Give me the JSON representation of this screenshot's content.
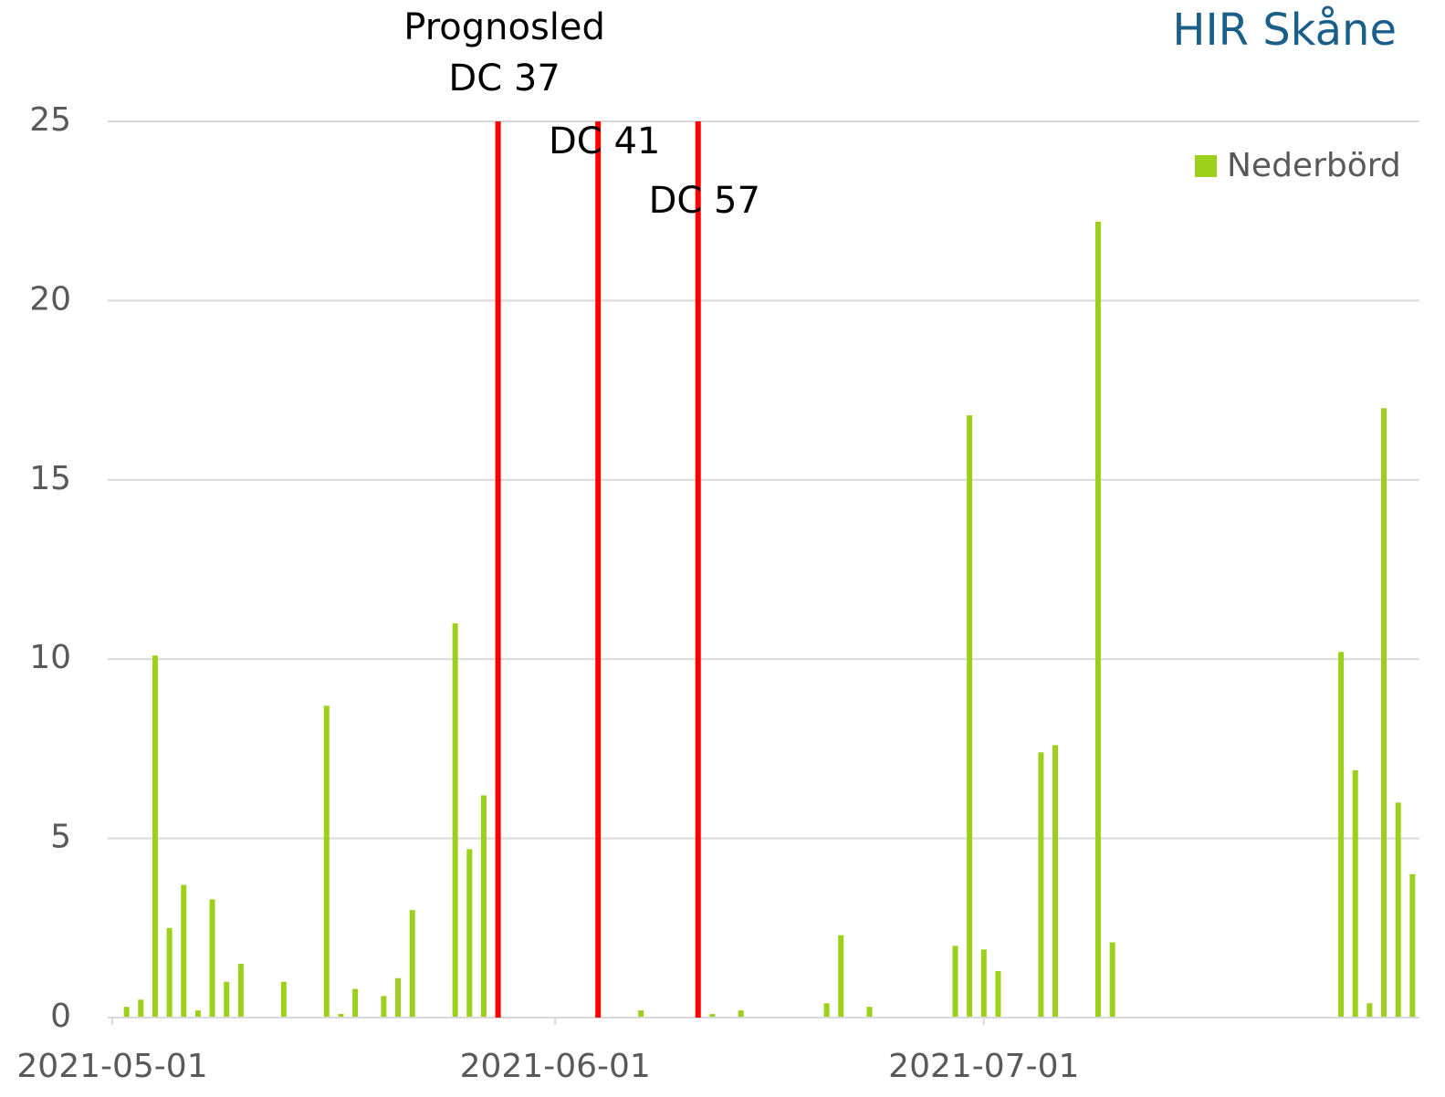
{
  "chart_data": {
    "type": "bar",
    "brand": "HIR Skåne",
    "series": [
      {
        "name": "Nederbörd",
        "color": "#9bd01b",
        "x": [
          "2021-05-02",
          "2021-05-03",
          "2021-05-04",
          "2021-05-05",
          "2021-05-06",
          "2021-05-07",
          "2021-05-08",
          "2021-05-09",
          "2021-05-10",
          "2021-05-13",
          "2021-05-16",
          "2021-05-17",
          "2021-05-18",
          "2021-05-20",
          "2021-05-21",
          "2021-05-22",
          "2021-05-25",
          "2021-05-26",
          "2021-05-27",
          "2021-06-07",
          "2021-06-12",
          "2021-06-14",
          "2021-06-20",
          "2021-06-21",
          "2021-06-23",
          "2021-06-29",
          "2021-06-30",
          "2021-07-01",
          "2021-07-02",
          "2021-07-05",
          "2021-07-06",
          "2021-07-09",
          "2021-07-10",
          "2021-07-26",
          "2021-07-27",
          "2021-07-28",
          "2021-07-29",
          "2021-07-30",
          "2021-07-31"
        ],
        "values": [
          0.3,
          0.5,
          10.1,
          2.5,
          3.7,
          0.2,
          3.3,
          1.0,
          1.5,
          1.0,
          8.7,
          0.1,
          0.8,
          0.6,
          1.1,
          3.0,
          11.0,
          4.7,
          6.2,
          0.2,
          0.1,
          0.2,
          0.4,
          2.3,
          0.3,
          2.0,
          16.8,
          1.9,
          1.3,
          7.4,
          7.6,
          22.2,
          2.1,
          10.2,
          6.9,
          0.4,
          17.0,
          6.0,
          4.0
        ]
      }
    ],
    "annotations": [
      {
        "x": "2021-05-28",
        "label": [
          "Prognosled",
          "DC 37"
        ],
        "color": "#ff0000"
      },
      {
        "x": "2021-06-04",
        "label": [
          "DC 41"
        ],
        "color": "#ff0000"
      },
      {
        "x": "2021-06-11",
        "label": [
          "DC 57"
        ],
        "color": "#ff0000"
      }
    ],
    "xlim": [
      "2021-05-01",
      "2021-08-01"
    ],
    "xticks": [
      "2021-05-01",
      "2021-06-01",
      "2021-07-01"
    ],
    "ylim": [
      0,
      25
    ],
    "yticks": [
      0,
      5,
      10,
      15,
      20,
      25
    ],
    "grid": true,
    "legend": "top-right"
  }
}
